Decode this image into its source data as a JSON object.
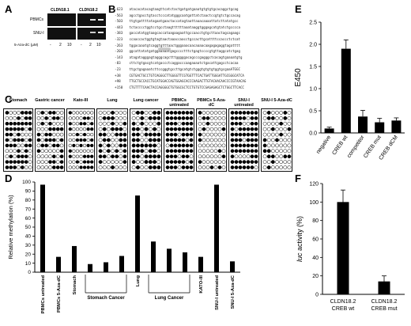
{
  "panels": {
    "A": {
      "letter": "A",
      "headers": [
        "CLDN18.1",
        "CLDN18.2"
      ],
      "rows": [
        "PBMCs",
        "SNU-I"
      ],
      "treatment_label": "5-Aza-dC (µM)",
      "doses": [
        "-",
        "2",
        "10",
        "-",
        "2",
        "10"
      ]
    },
    "B": {
      "letter": "B",
      "positions": [
        "-623",
        "-563",
        "-503",
        "-443",
        "-383",
        "-323",
        "-263",
        "-203",
        "-143",
        "-83",
        "-23",
        "+38",
        "+98",
        "+158"
      ],
      "sequences": [
        "atacacatacagtaagttcatctactgatgatgaaatgtgtgtgcacaggctgcag",
        "agcctgacctgtacctcccatatgggcaatgattatctaactccgtgtctgccacag",
        "ttgtgattttatagaatgaactaccatagtaattaaacaaaattatcttatatgcc",
        "tctacccctggtcctgcctaagttttttaaataaggtgggagcatgtatctgcccca",
        "gaccatatggtaagcaccataagaagaattgccaacctgtgcttaactagcagaagc",
        "ccaaccactggtgtagtaactaaaccaacctgccacttgcattttccaccctctcat",
        "tggacaaatgtcaggtgtttaactgggaaacaacaaaacaagagagaggtagatttt",
        "ggcattatatgatggaaaaatgagcccctttctgagtccccgtgttaggcatctgag",
        "atagatagggagtagggcagctttgggggacagcccgagggctcacagtgaaaatgtg",
        "cttctgtgacgtcatgaccctcaggacccaagaaaatctgacattgagcctcacaa",
        "ttgctgagaaatcttccgggtgccttgcatgtctgggtgtgtgtggtgcgaaATGGC",
        "CGTGACTGCCTGTCAGGGCTTGGGGTTCGTGGTTTCACTGATTGGGATTGCGGGCATCA",
        "TTGCTGCCACCTGCATGGACCAGTGGAGCACCCAAGACTTGTACAACAACCCCGTAACAG",
        "CTGTTTTCAACTACCAGGGGCTGTGGCGCTCCTGTGTCCGAGAGAGCTCTGGCTTCACC"
      ]
    },
    "C": {
      "letter": "C",
      "groups": [
        "Stomach",
        "Gastric cancer",
        "Kato-III",
        "Lung",
        "Lung cancer",
        "PBMCs untreated",
        "PBMCs 5-Aza-dC",
        "SNU-I untreated",
        "SNU-I 5-Aza-dC"
      ]
    },
    "D": {
      "letter": "D",
      "group_labels": [
        "Stomach Cancer",
        "Lung Cancer"
      ]
    },
    "E": {
      "letter": "E"
    },
    "F": {
      "letter": "F"
    }
  },
  "chart_data": [
    {
      "type": "bar",
      "panel": "D",
      "categories": [
        "PBMCs untreated",
        "PBMCs 5-Aza-dC",
        "Stomach",
        "",
        "",
        "",
        "Lung",
        "",
        "",
        "",
        "KATO-III",
        "SNU-I untreated",
        "SNU-I 5-Aza-dC"
      ],
      "values": [
        97,
        17,
        29,
        9,
        11,
        18,
        85,
        34,
        26,
        22,
        17,
        97,
        12
      ],
      "ylabel": "Relative methylation (%)",
      "ylim": [
        0,
        100
      ],
      "yticks": [
        0,
        10,
        20,
        30,
        40,
        50,
        60,
        70,
        80,
        90,
        100
      ],
      "color": "#000000"
    },
    {
      "type": "bar",
      "panel": "E",
      "categories": [
        "negative",
        "CREB wt",
        "competitor",
        "CREB mut",
        "CREB dCM"
      ],
      "values": [
        0.1,
        1.9,
        0.37,
        0.24,
        0.28
      ],
      "errors": [
        0.03,
        0.2,
        0.14,
        0.09,
        0.06
      ],
      "ylabel": "E450",
      "ylim": [
        0,
        2.5
      ],
      "yticks": [
        "0.0",
        "0.5",
        "1.0",
        "1.5",
        "2.0",
        "2.5"
      ],
      "color": "#000000"
    },
    {
      "type": "bar",
      "panel": "F",
      "categories": [
        "CLDN18.2 CREB wt",
        "CLDN18.2 CREB mut"
      ],
      "values": [
        100,
        14
      ],
      "errors": [
        13,
        6
      ],
      "ylabel_italic": "luc",
      "ylabel": " activity (%)",
      "ylim": [
        0,
        120
      ],
      "yticks": [
        0,
        20,
        40,
        60,
        80,
        100,
        120
      ],
      "color": "#000000"
    }
  ]
}
